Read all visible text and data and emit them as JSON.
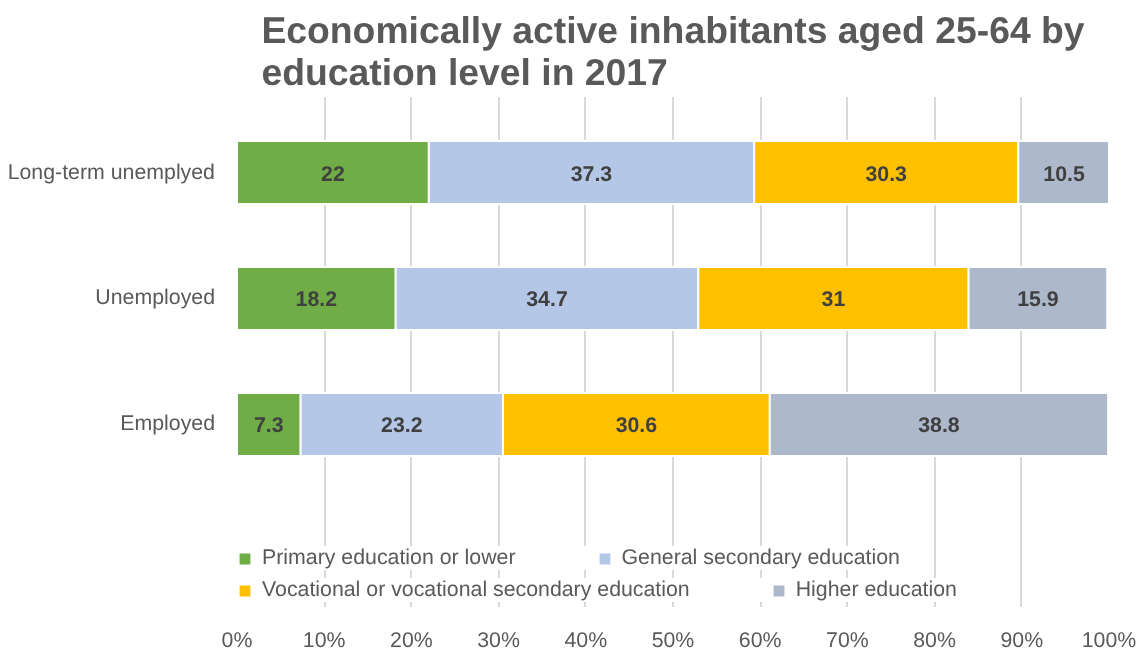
{
  "chart_data": {
    "type": "bar",
    "orientation": "horizontal",
    "stacked": true,
    "title": "Economically active inhabitants aged 25-64 by education level in 2017",
    "categories": [
      "Long-term unemplyed",
      "Unemployed",
      "Employed"
    ],
    "series": [
      {
        "name": "Primary education or lower",
        "color": "#70ad47",
        "values": [
          22,
          18.2,
          7.3
        ]
      },
      {
        "name": "General secondary education",
        "color": "#b4c7e7",
        "values": [
          37.3,
          34.7,
          23.2
        ]
      },
      {
        "name": "Vocational or vocational secondary education",
        "color": "#ffc000",
        "values": [
          30.3,
          31,
          30.6
        ]
      },
      {
        "name": "Higher education",
        "color": "#adb9ca",
        "values": [
          10.5,
          15.9,
          38.8
        ]
      }
    ],
    "xlim": [
      0,
      100
    ],
    "xticks": [
      {
        "value": 0,
        "label": "0%"
      },
      {
        "value": 10,
        "label": "10%"
      },
      {
        "value": 20,
        "label": "20%"
      },
      {
        "value": 30,
        "label": "30%"
      },
      {
        "value": 40,
        "label": "40%"
      },
      {
        "value": 50,
        "label": "50%"
      },
      {
        "value": 60,
        "label": "60%"
      },
      {
        "value": 70,
        "label": "70%"
      },
      {
        "value": 80,
        "label": "80%"
      },
      {
        "value": 90,
        "label": "90%"
      },
      {
        "value": 100,
        "label": "100%"
      }
    ],
    "data_labels": true,
    "grid": "x",
    "legend": "bottom"
  }
}
